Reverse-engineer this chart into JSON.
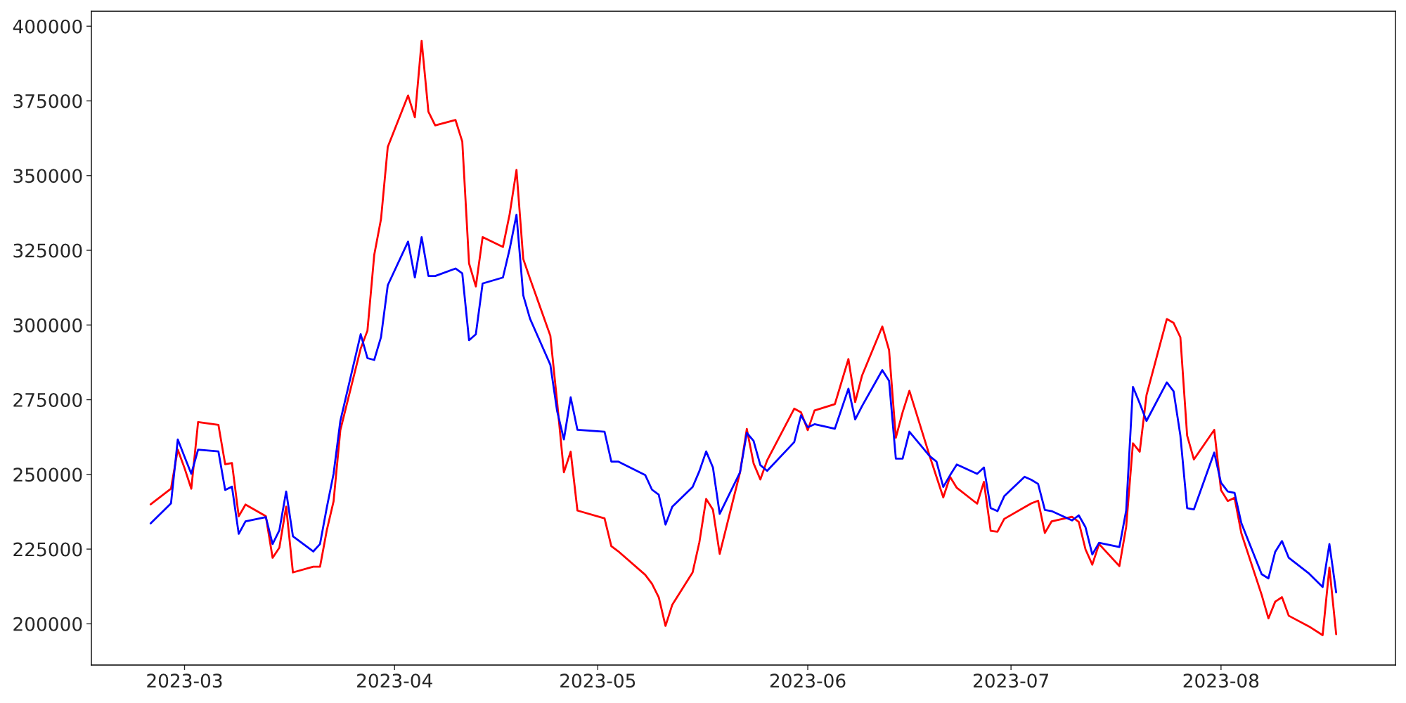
{
  "chart_data": {
    "type": "line",
    "x": [
      "2023-02-24",
      "2023-02-27",
      "2023-02-28",
      "2023-03-01",
      "2023-03-02",
      "2023-03-03",
      "2023-03-06",
      "2023-03-07",
      "2023-03-08",
      "2023-03-09",
      "2023-03-10",
      "2023-03-13",
      "2023-03-14",
      "2023-03-15",
      "2023-03-16",
      "2023-03-17",
      "2023-03-20",
      "2023-03-21",
      "2023-03-22",
      "2023-03-23",
      "2023-03-24",
      "2023-03-27",
      "2023-03-28",
      "2023-03-29",
      "2023-03-30",
      "2023-03-31",
      "2023-04-03",
      "2023-04-04",
      "2023-04-05",
      "2023-04-06",
      "2023-04-07",
      "2023-04-10",
      "2023-04-11",
      "2023-04-12",
      "2023-04-13",
      "2023-04-14",
      "2023-04-17",
      "2023-04-18",
      "2023-04-19",
      "2023-04-20",
      "2023-04-21",
      "2023-04-24",
      "2023-04-25",
      "2023-04-26",
      "2023-04-27",
      "2023-04-28",
      "2023-05-02",
      "2023-05-03",
      "2023-05-04",
      "2023-05-08",
      "2023-05-09",
      "2023-05-10",
      "2023-05-11",
      "2023-05-12",
      "2023-05-15",
      "2023-05-16",
      "2023-05-17",
      "2023-05-18",
      "2023-05-19",
      "2023-05-22",
      "2023-05-23",
      "2023-05-24",
      "2023-05-25",
      "2023-05-26",
      "2023-05-30",
      "2023-05-31",
      "2023-06-01",
      "2023-06-02",
      "2023-06-05",
      "2023-06-07",
      "2023-06-08",
      "2023-06-09",
      "2023-06-12",
      "2023-06-13",
      "2023-06-14",
      "2023-06-15",
      "2023-06-16",
      "2023-06-19",
      "2023-06-20",
      "2023-06-21",
      "2023-06-22",
      "2023-06-23",
      "2023-06-26",
      "2023-06-27",
      "2023-06-28",
      "2023-06-29",
      "2023-06-30",
      "2023-07-03",
      "2023-07-04",
      "2023-07-05",
      "2023-07-06",
      "2023-07-07",
      "2023-07-10",
      "2023-07-11",
      "2023-07-12",
      "2023-07-13",
      "2023-07-14",
      "2023-07-17",
      "2023-07-18",
      "2023-07-19",
      "2023-07-20",
      "2023-07-21",
      "2023-07-24",
      "2023-07-25",
      "2023-07-26",
      "2023-07-27",
      "2023-07-28",
      "2023-07-31",
      "2023-08-01",
      "2023-08-02",
      "2023-08-03",
      "2023-08-04",
      "2023-08-07",
      "2023-08-08",
      "2023-08-09",
      "2023-08-10",
      "2023-08-11",
      "2023-08-14",
      "2023-08-16",
      "2023-08-17",
      "2023-08-18"
    ],
    "series": [
      {
        "color": "#ff0000",
        "values": [
          240000,
          245200,
          258300,
          252100,
          245200,
          267500,
          266600,
          253400,
          253800,
          236000,
          239900,
          236000,
          222100,
          225500,
          239200,
          217200,
          219100,
          219100,
          231300,
          241000,
          264800,
          292100,
          298100,
          323400,
          335400,
          359600,
          376800,
          369500,
          395100,
          371400,
          366800,
          368600,
          361400,
          320600,
          312900,
          329400,
          326100,
          337200,
          351900,
          322100,
          315500,
          296400,
          274200,
          250700,
          257600,
          237900,
          235300,
          226000,
          224300,
          216400,
          213400,
          208900,
          199300,
          206400,
          217200,
          227300,
          241800,
          238200,
          223400,
          250700,
          265200,
          253700,
          248300,
          254700,
          272000,
          270800,
          264800,
          271400,
          273500,
          288600,
          274200,
          283000,
          299500,
          291600,
          262300,
          270800,
          278000,
          256100,
          249200,
          242300,
          249200,
          245500,
          240200,
          247500,
          231100,
          230800,
          235100,
          239000,
          240300,
          241200,
          230400,
          234300,
          235800,
          234100,
          224900,
          219800,
          226700,
          219300,
          232400,
          260400,
          257600,
          276500,
          302000,
          300700,
          295900,
          263000,
          255000,
          264900,
          244700,
          241100,
          242200,
          230300,
          209700,
          201800,
          207400,
          208900,
          202700,
          199100,
          196200,
          218800,
          196500
        ]
      },
      {
        "color": "#0000ff",
        "values": [
          233600,
          240300,
          261700,
          255900,
          250200,
          258300,
          257700,
          244800,
          245900,
          230100,
          234300,
          235700,
          226700,
          231300,
          244300,
          229300,
          224200,
          226700,
          238900,
          250200,
          267900,
          296900,
          288900,
          288300,
          295900,
          313300,
          327900,
          315900,
          329400,
          316400,
          316400,
          318900,
          317300,
          294900,
          296900,
          313900,
          315900,
          325500,
          336900,
          309900,
          302100,
          286700,
          271200,
          261700,
          275800,
          264900,
          264300,
          254300,
          254300,
          249800,
          244900,
          243200,
          233200,
          239200,
          245800,
          251100,
          257700,
          252300,
          236800,
          250700,
          263900,
          261200,
          253100,
          251200,
          260800,
          269800,
          265800,
          266800,
          265300,
          278700,
          268400,
          272800,
          284900,
          281300,
          255300,
          255300,
          264300,
          256100,
          254300,
          245800,
          249700,
          253300,
          250200,
          252300,
          238700,
          237700,
          242700,
          249200,
          248200,
          246800,
          238100,
          237700,
          234600,
          236300,
          232300,
          223200,
          227100,
          225700,
          237900,
          279300,
          273800,
          267900,
          280800,
          277800,
          263000,
          238700,
          238300,
          257300,
          247200,
          244300,
          243800,
          233700,
          216600,
          215200,
          224100,
          227700,
          222100,
          216800,
          212300,
          226700,
          210500
        ]
      }
    ],
    "xlim": [
      "2023-02-15T06:00",
      "2023-08-26T18:00"
    ],
    "xticks": [
      {
        "value": "2023-03-01",
        "label": "2023-03"
      },
      {
        "value": "2023-04-01",
        "label": "2023-04"
      },
      {
        "value": "2023-05-01",
        "label": "2023-05"
      },
      {
        "value": "2023-06-01",
        "label": "2023-06"
      },
      {
        "value": "2023-07-01",
        "label": "2023-07"
      },
      {
        "value": "2023-08-01",
        "label": "2023-08"
      }
    ],
    "ylim": [
      186200,
      405000
    ],
    "yticks": [
      200000,
      225000,
      250000,
      275000,
      300000,
      325000,
      350000,
      375000,
      400000
    ]
  }
}
